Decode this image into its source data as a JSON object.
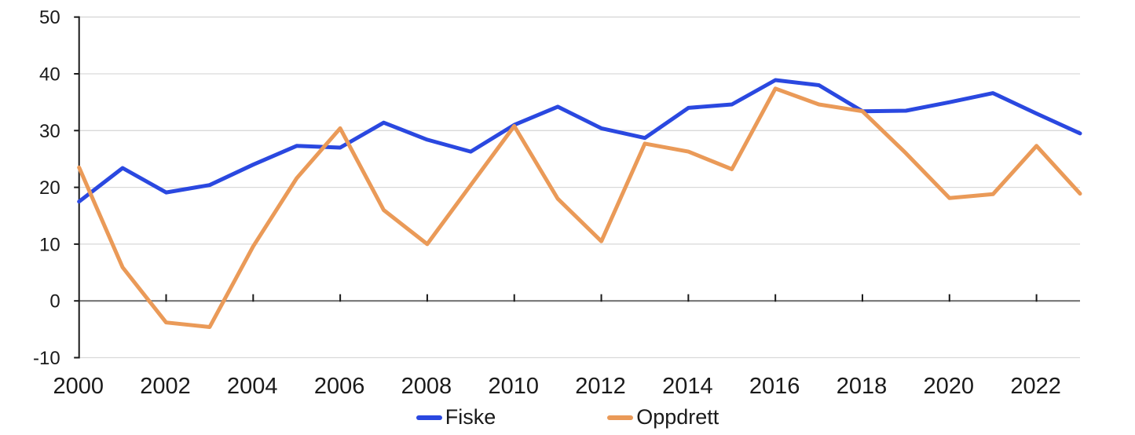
{
  "chart_data": {
    "type": "line",
    "x": [
      2000,
      2001,
      2002,
      2003,
      2004,
      2005,
      2006,
      2007,
      2008,
      2009,
      2010,
      2011,
      2012,
      2013,
      2014,
      2015,
      2016,
      2017,
      2018,
      2019,
      2020,
      2021,
      2022,
      2023
    ],
    "series": [
      {
        "name": "Fiske",
        "color": "#2a48e0",
        "values": [
          17.5,
          23.4,
          19.1,
          20.4,
          24.0,
          27.3,
          27.0,
          31.4,
          28.4,
          26.3,
          31.0,
          34.2,
          30.4,
          28.7,
          34.0,
          34.6,
          38.9,
          38.0,
          33.4,
          33.5,
          35.0,
          36.6,
          33.0,
          29.5
        ]
      },
      {
        "name": "Oppdrett",
        "color": "#ea9a58",
        "values": [
          23.5,
          5.9,
          -3.8,
          -4.6,
          9.6,
          21.6,
          30.4,
          16.0,
          10.0,
          20.4,
          30.8,
          18.0,
          10.5,
          27.7,
          26.3,
          23.2,
          37.4,
          34.6,
          33.4,
          26.0,
          18.1,
          18.8,
          27.3,
          18.9
        ]
      }
    ],
    "title": "",
    "xlabel": "",
    "ylabel": "",
    "ylim": [
      -10,
      50
    ],
    "yticks": [
      -10,
      0,
      10,
      20,
      30,
      40,
      50
    ],
    "ytick_labels": [
      "-10",
      "0",
      "10",
      "20",
      "30",
      "40",
      "50"
    ],
    "xticks": [
      2000,
      2002,
      2004,
      2006,
      2008,
      2010,
      2012,
      2014,
      2016,
      2018,
      2020,
      2022
    ],
    "xtick_labels": [
      "2000",
      "2002",
      "2004",
      "2006",
      "2008",
      "2010",
      "2012",
      "2014",
      "2016",
      "2018",
      "2020",
      "2022"
    ],
    "grid": "horizontal",
    "legend_position": "bottom-center",
    "colors": {
      "gridline": "#d9d9d9",
      "zero_line": "#757575",
      "axis_line": "#1a1a1a",
      "tick": "#1a1a1a",
      "text": "#1a1a1a",
      "background": "#ffffff"
    }
  }
}
